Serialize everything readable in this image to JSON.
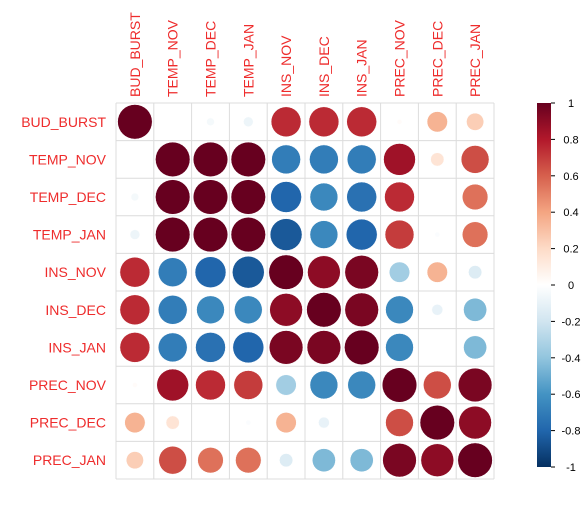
{
  "chart_data": {
    "type": "heatmap",
    "title": "",
    "label_color": "#ee2c2c",
    "variables": [
      "BUD_BURST",
      "TEMP_NOV",
      "TEMP_DEC",
      "TEMP_JAN",
      "INS_NOV",
      "INS_DEC",
      "INS_JAN",
      "PREC_NOV",
      "PREC_DEC",
      "PREC_JAN"
    ],
    "matrix": [
      [
        1.0,
        0.0,
        -0.05,
        -0.08,
        0.75,
        0.75,
        0.75,
        0.02,
        0.35,
        0.25
      ],
      [
        0.0,
        1.0,
        1.0,
        1.0,
        -0.7,
        -0.7,
        -0.7,
        0.85,
        0.15,
        0.65
      ],
      [
        -0.05,
        1.0,
        1.0,
        1.0,
        -0.8,
        -0.65,
        -0.75,
        0.75,
        0.0,
        0.55
      ],
      [
        -0.08,
        1.0,
        1.0,
        1.0,
        -0.85,
        -0.65,
        -0.8,
        0.7,
        -0.02,
        0.55
      ],
      [
        0.75,
        -0.7,
        -0.8,
        -0.85,
        1.0,
        0.9,
        0.95,
        -0.35,
        0.35,
        -0.15
      ],
      [
        0.75,
        -0.7,
        -0.65,
        -0.65,
        0.9,
        1.0,
        0.95,
        -0.65,
        -0.1,
        -0.45
      ],
      [
        0.75,
        -0.7,
        -0.75,
        -0.8,
        0.95,
        0.95,
        1.0,
        -0.65,
        0.0,
        -0.45
      ],
      [
        0.02,
        0.85,
        0.75,
        0.7,
        -0.35,
        -0.65,
        -0.65,
        1.0,
        0.65,
        0.95
      ],
      [
        0.35,
        0.15,
        0.0,
        -0.02,
        0.35,
        -0.1,
        0.0,
        0.65,
        1.0,
        0.9
      ],
      [
        0.25,
        0.65,
        0.55,
        0.55,
        -0.15,
        -0.45,
        -0.45,
        0.95,
        0.9,
        1.0
      ]
    ],
    "colorbar": {
      "range": [
        -1,
        1
      ],
      "ticks": [
        "1",
        "0.8",
        "0.6",
        "0.4",
        "0.2",
        "0",
        "-0.2",
        "-0.4",
        "-0.6",
        "-0.8",
        "-1"
      ],
      "colors": [
        "#67001f",
        "#b2182b",
        "#d6604d",
        "#f4a582",
        "#fddbc7",
        "#ffffff",
        "#d1e5f0",
        "#92c5de",
        "#4393c3",
        "#2166ac",
        "#053061"
      ]
    }
  }
}
